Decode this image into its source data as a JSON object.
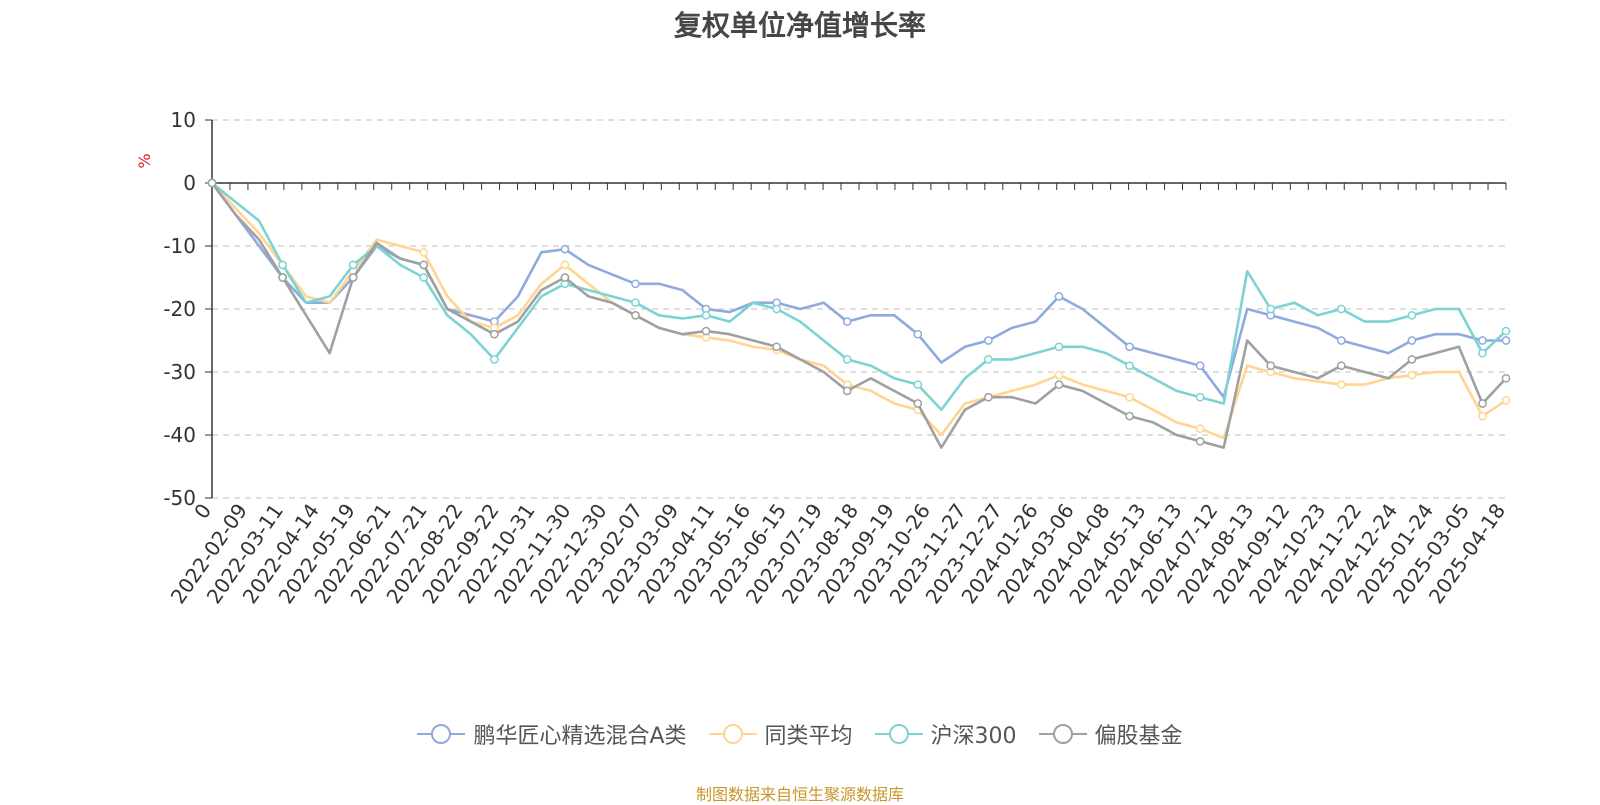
{
  "title": "复权单位净值增长率",
  "source_note": "制图数据来自恒生聚源数据库",
  "colors": {
    "series1": "#8faadc",
    "series2": "#ffd591",
    "series3": "#7dd3d3",
    "series4": "#a0a0a0",
    "source": "#c8962c",
    "unit": "#e02020"
  },
  "chart_data": {
    "type": "line",
    "title": "复权单位净值增长率",
    "ylabel": "%",
    "ylim": [
      -50,
      10
    ],
    "yticks": [
      "10",
      "0",
      "-10",
      "-20",
      "-30",
      "-40",
      "-50"
    ],
    "grid": true,
    "legend_position": "bottom",
    "x_tick_labels": [
      "0",
      "2022-02-09",
      "2022-03-11",
      "2022-04-14",
      "2022-05-19",
      "2022-06-21",
      "2022-07-21",
      "2022-08-22",
      "2022-09-22",
      "2022-10-31",
      "2022-11-30",
      "2022-12-30",
      "2023-02-07",
      "2023-03-09",
      "2023-04-11",
      "2023-05-16",
      "2023-06-15",
      "2023-07-19",
      "2023-08-18",
      "2023-09-19",
      "2023-10-26",
      "2023-11-27",
      "2023-12-27",
      "2024-01-26",
      "2024-03-06",
      "2024-04-08",
      "2024-05-13",
      "2024-06-13",
      "2024-07-12",
      "2024-08-13",
      "2024-09-12",
      "2024-10-23",
      "2024-11-22",
      "2024-12-24",
      "2025-01-24",
      "2025-03-05",
      "2025-04-18"
    ],
    "series": [
      {
        "name": "鹏华匠心精选混合A类",
        "values": [
          0,
          -5,
          -10,
          -15,
          -19,
          -19,
          -15,
          -10,
          -12,
          -13,
          -20,
          -21,
          -22,
          -18,
          -11,
          -10.5,
          -13,
          -14.5,
          -16,
          -16,
          -17,
          -20,
          -20.5,
          -19,
          -19,
          -20,
          -19,
          -22,
          -21,
          -21,
          -24,
          -28.5,
          -26,
          -25,
          -23,
          -22,
          -18,
          -20,
          -23,
          -26,
          -27,
          -28,
          -29,
          -34,
          -20,
          -21,
          -22,
          -23,
          -25,
          -26,
          -27,
          -25,
          -24,
          -24,
          -25,
          -25
        ]
      },
      {
        "name": "同类平均",
        "values": [
          0,
          -4,
          -8,
          -13,
          -18,
          -19,
          -14,
          -9,
          -10,
          -11,
          -18,
          -22,
          -23,
          -21,
          -16,
          -13,
          -16,
          -19,
          -21,
          -23,
          -24,
          -24.5,
          -25,
          -26,
          -26.5,
          -28,
          -29,
          -32,
          -33,
          -35,
          -36,
          -40,
          -35,
          -34,
          -33,
          -32,
          -30.5,
          -32,
          -33,
          -34,
          -36,
          -38,
          -39,
          -40.5,
          -29,
          -30,
          -31,
          -31.5,
          -32,
          -32,
          -31,
          -30.5,
          -30,
          -30,
          -37,
          -34.5
        ]
      },
      {
        "name": "沪深300",
        "values": [
          0,
          -3,
          -6,
          -13,
          -19,
          -18,
          -13,
          -10,
          -13,
          -15,
          -21,
          -24,
          -28,
          -23,
          -18,
          -16,
          -17,
          -18,
          -19,
          -21,
          -21.5,
          -21,
          -22,
          -19,
          -20,
          -22,
          -25,
          -28,
          -29,
          -31,
          -32,
          -36,
          -31,
          -28,
          -28,
          -27,
          -26,
          -26,
          -27,
          -29,
          -31,
          -33,
          -34,
          -35,
          -14,
          -20,
          -19,
          -21,
          -20,
          -22,
          -22,
          -21,
          -20,
          -20,
          -27,
          -23.5
        ]
      },
      {
        "name": "偏股基金",
        "values": [
          0,
          -5,
          -9,
          -15,
          -21,
          -27,
          -15,
          -9.5,
          -12,
          -13,
          -20,
          -22,
          -24,
          -22,
          -17,
          -15,
          -18,
          -19,
          -21,
          -23,
          -24,
          -23.5,
          -24,
          -25,
          -26,
          -28,
          -30,
          -33,
          -31,
          -33,
          -35,
          -42,
          -36,
          -34,
          -34,
          -35,
          -32,
          -33,
          -35,
          -37,
          -38,
          -40,
          -41,
          -42,
          -25,
          -29,
          -30,
          -31,
          -29,
          -30,
          -31,
          -28,
          -27,
          -26,
          -35,
          -31
        ]
      }
    ]
  }
}
